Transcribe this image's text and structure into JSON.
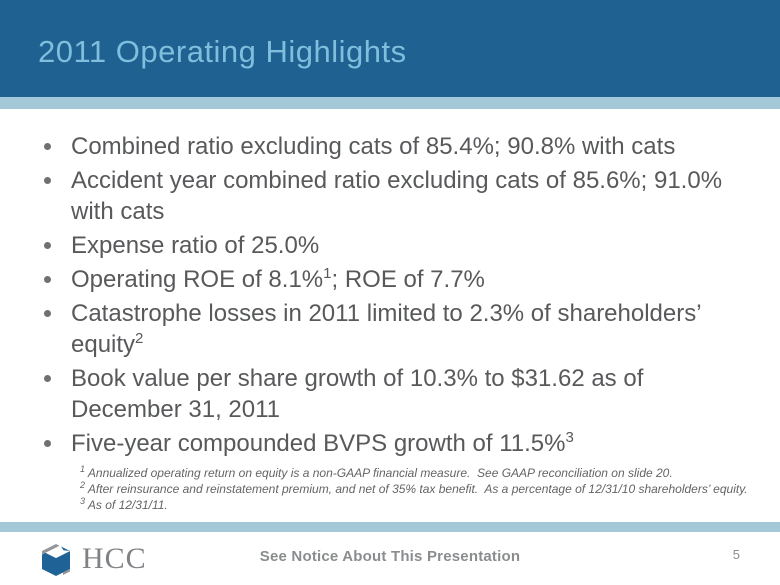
{
  "slide": {
    "title": "2011 Operating Highlights",
    "page_number": "5"
  },
  "colors": {
    "header_bg": "#1f6191",
    "title_text": "#7fbedd",
    "stripe": "#a3c8d8",
    "body_text": "#58595b",
    "footnote_text": "#636466",
    "footer_text": "#8a8c8e",
    "logo_blue": "#1f6396",
    "logo_gray": "#939598"
  },
  "bullets": [
    {
      "segments": [
        {
          "t": "Combined ratio excluding cats of 85.4%; 90.8% with cats"
        }
      ]
    },
    {
      "segments": [
        {
          "t": "Accident year combined ratio excluding cats of 85.6%; 91.0% with cats"
        }
      ]
    },
    {
      "segments": [
        {
          "t": "Expense ratio of 25.0%"
        }
      ]
    },
    {
      "segments": [
        {
          "t": "Operating ROE of 8.1%"
        },
        {
          "t": "1",
          "sup": true
        },
        {
          "t": "; ROE of 7.7%"
        }
      ]
    },
    {
      "segments": [
        {
          "t": "Catastrophe losses in 2011 limited to 2.3% of shareholders’ equity"
        },
        {
          "t": "2",
          "sup": true
        }
      ]
    },
    {
      "segments": [
        {
          "t": "Book value per share growth of 10.3% to $31.62 as of December 31, 2011"
        }
      ]
    },
    {
      "segments": [
        {
          "t": "Five-year compounded BVPS growth of 11.5%"
        },
        {
          "t": "3",
          "sup": true
        }
      ]
    }
  ],
  "footnotes": [
    {
      "sup": "1",
      "text": "Annualized operating return on equity is a non-GAAP financial measure.  See GAAP reconciliation on slide 20."
    },
    {
      "sup": "2",
      "text": "After reinsurance and reinstatement premium, and net of 35% tax benefit.  As a percentage of 12/31/10 shareholders’ equity."
    },
    {
      "sup": "3",
      "text": "As of 12/31/11."
    }
  ],
  "footer": {
    "logo_text": "HCC",
    "notice": "See Notice About This Presentation"
  }
}
